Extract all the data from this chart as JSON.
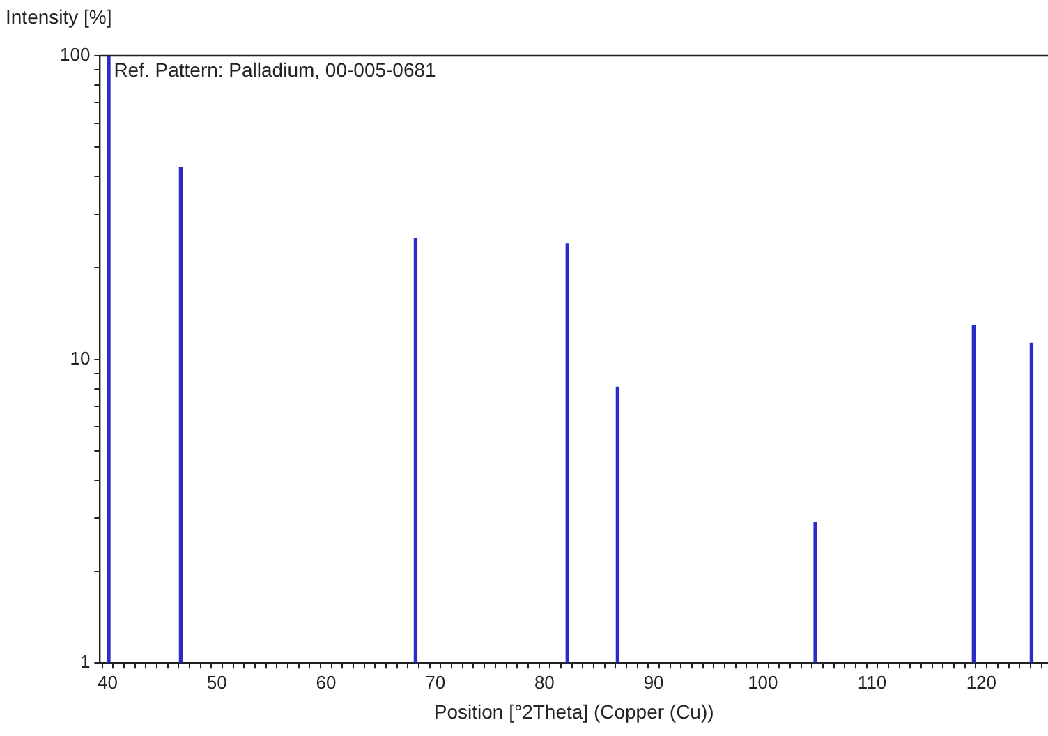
{
  "chart_data": {
    "type": "bar",
    "xlabel": "Position [°2Theta] (Copper (Cu))",
    "ylabel": "Intensity [%]",
    "annotations": [
      "Ref. Pattern: Palladium, 00-005-0681"
    ],
    "x": [
      40.1,
      46.7,
      68.2,
      82.1,
      86.7,
      104.8,
      119.3,
      124.6
    ],
    "series": [
      {
        "color": "#2b2bc8",
        "values": [
          100,
          43,
          25,
          24,
          8.1,
          2.9,
          12.9,
          11.3
        ]
      }
    ],
    "log": "y",
    "grid": false,
    "legend": false,
    "xlim": [
      39.8,
      125.6
    ],
    "xticks": [
      40,
      {
        "value": 41,
        "label": null
      },
      {
        "value": 42,
        "label": null
      },
      {
        "value": 43,
        "label": null
      },
      {
        "value": 44,
        "label": null
      },
      {
        "value": 45,
        "label": null
      },
      {
        "value": 46,
        "label": null
      },
      {
        "value": 47,
        "label": null
      },
      {
        "value": 48,
        "label": null
      },
      {
        "value": 49,
        "label": null
      },
      50,
      {
        "value": 51,
        "label": null
      },
      {
        "value": 52,
        "label": null
      },
      {
        "value": 53,
        "label": null
      },
      {
        "value": 54,
        "label": null
      },
      {
        "value": 55,
        "label": null
      },
      {
        "value": 56,
        "label": null
      },
      {
        "value": 57,
        "label": null
      },
      {
        "value": 58,
        "label": null
      },
      {
        "value": 59,
        "label": null
      },
      60,
      {
        "value": 61,
        "label": null
      },
      {
        "value": 62,
        "label": null
      },
      {
        "value": 63,
        "label": null
      },
      {
        "value": 64,
        "label": null
      },
      {
        "value": 65,
        "label": null
      },
      {
        "value": 66,
        "label": null
      },
      {
        "value": 67,
        "label": null
      },
      {
        "value": 68,
        "label": null
      },
      {
        "value": 69,
        "label": null
      },
      70,
      {
        "value": 71,
        "label": null
      },
      {
        "value": 72,
        "label": null
      },
      {
        "value": 73,
        "label": null
      },
      {
        "value": 74,
        "label": null
      },
      {
        "value": 75,
        "label": null
      },
      {
        "value": 76,
        "label": null
      },
      {
        "value": 77,
        "label": null
      },
      {
        "value": 78,
        "label": null
      },
      {
        "value": 79,
        "label": null
      },
      80,
      {
        "value": 81,
        "label": null
      },
      {
        "value": 82,
        "label": null
      },
      {
        "value": 83,
        "label": null
      },
      {
        "value": 84,
        "label": null
      },
      {
        "value": 85,
        "label": null
      },
      {
        "value": 86,
        "label": null
      },
      {
        "value": 87,
        "label": null
      },
      {
        "value": 88,
        "label": null
      },
      {
        "value": 89,
        "label": null
      },
      90,
      {
        "value": 91,
        "label": null
      },
      {
        "value": 92,
        "label": null
      },
      {
        "value": 93,
        "label": null
      },
      {
        "value": 94,
        "label": null
      },
      {
        "value": 95,
        "label": null
      },
      {
        "value": 96,
        "label": null
      },
      {
        "value": 97,
        "label": null
      },
      {
        "value": 98,
        "label": null
      },
      {
        "value": 99,
        "label": null
      },
      100,
      {
        "value": 101,
        "label": null
      },
      {
        "value": 102,
        "label": null
      },
      {
        "value": 103,
        "label": null
      },
      {
        "value": 104,
        "label": null
      },
      {
        "value": 105,
        "label": null
      },
      {
        "value": 106,
        "label": null
      },
      {
        "value": 107,
        "label": null
      },
      {
        "value": 108,
        "label": null
      },
      {
        "value": 109,
        "label": null
      },
      110,
      {
        "value": 111,
        "label": null
      },
      {
        "value": 112,
        "label": null
      },
      {
        "value": 113,
        "label": null
      },
      {
        "value": 114,
        "label": null
      },
      {
        "value": 115,
        "label": null
      },
      {
        "value": 116,
        "label": null
      },
      {
        "value": 117,
        "label": null
      },
      {
        "value": 118,
        "label": null
      },
      {
        "value": 119,
        "label": null
      },
      120,
      {
        "value": 121,
        "label": null
      },
      {
        "value": 122,
        "label": null
      },
      {
        "value": 123,
        "label": null
      },
      {
        "value": 124,
        "label": null
      },
      {
        "value": 125,
        "label": null
      }
    ],
    "ylim": [
      1,
      100
    ],
    "yticks": [
      1,
      {
        "value": 2,
        "label": null
      },
      {
        "value": 3,
        "label": null
      },
      {
        "value": 4,
        "label": null
      },
      {
        "value": 5,
        "label": null
      },
      {
        "value": 6,
        "label": null
      },
      {
        "value": 7,
        "label": null
      },
      {
        "value": 8,
        "label": null
      },
      {
        "value": 9,
        "label": null
      },
      10,
      {
        "value": 20,
        "label": null
      },
      {
        "value": 30,
        "label": null
      },
      {
        "value": 40,
        "label": null
      },
      {
        "value": 50,
        "label": null
      },
      {
        "value": 60,
        "label": null
      },
      {
        "value": 70,
        "label": null
      },
      {
        "value": 80,
        "label": null
      },
      {
        "value": 90,
        "label": null
      },
      100
    ]
  }
}
